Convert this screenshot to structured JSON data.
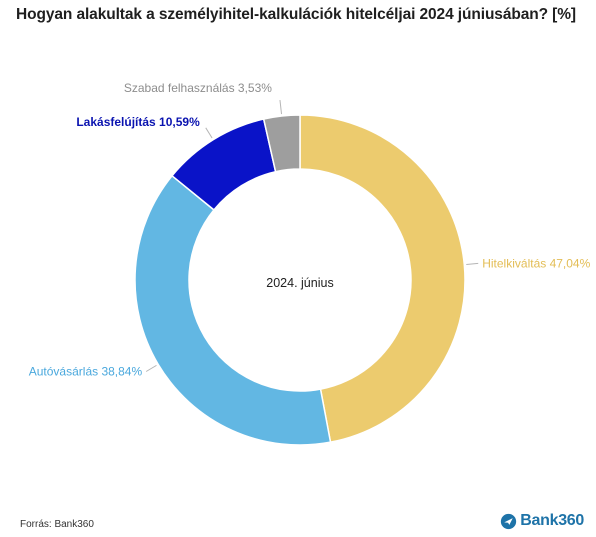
{
  "title": "Hogyan alakultak a személyihitel-kalkulációk hitelcéljai 2024 júniusában? [%]",
  "center_label": "2024. június",
  "source": "Forrás: Bank360",
  "logo": {
    "text": "Bank360",
    "icon": "plane-icon",
    "color": "#1e73a8"
  },
  "chart_data": {
    "type": "pie",
    "donut": true,
    "title": "Hogyan alakultak a személyihitel-kalkulációk hitelcéljai 2024 júniusában? [%]",
    "categories": [
      "Hitelkiváltás",
      "Autóvásárlás",
      "Lakásfelújítás",
      "Szabad felhasználás"
    ],
    "values": [
      47.04,
      38.84,
      10.59,
      3.53
    ],
    "labels": [
      "Hitelkiváltás 47,04%",
      "Autóvásárlás 38,84%",
      "Lakásfelújítás 10,59%",
      "Szabad felhasználás 3,53%"
    ],
    "colors": [
      "#eccb6e",
      "#62b7e3",
      "#0a13c8",
      "#9e9e9e"
    ],
    "label_colors": [
      "#e3bd55",
      "#4aa8dd",
      "#0a13b0",
      "#8d8d8d"
    ],
    "legend": "none"
  }
}
